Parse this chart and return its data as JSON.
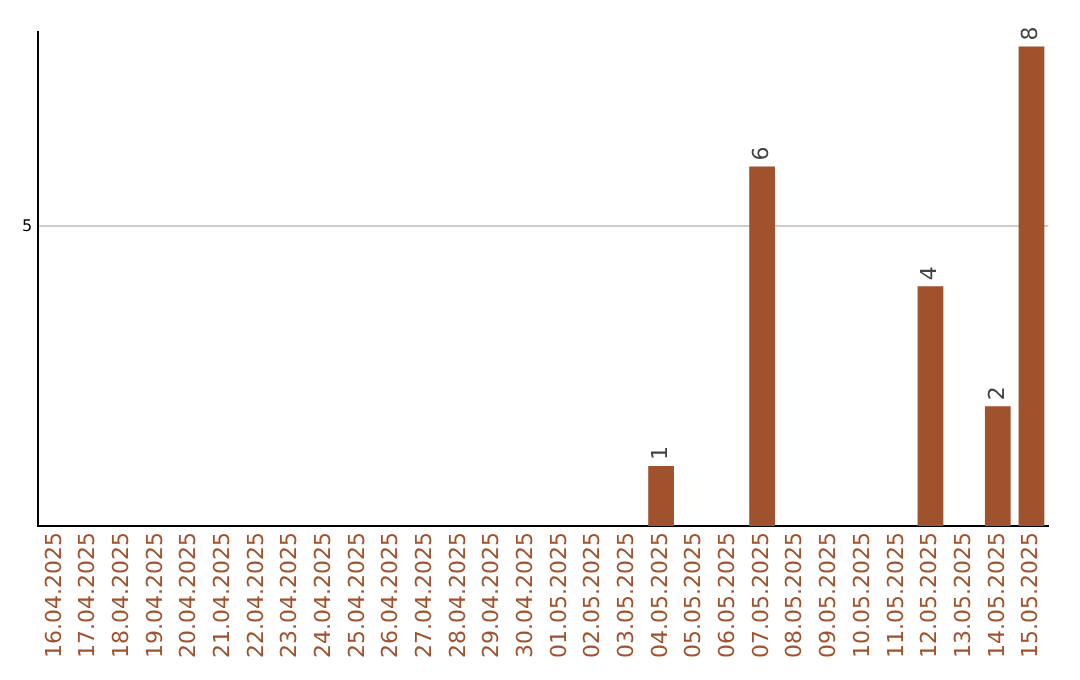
{
  "chart_data": {
    "type": "bar",
    "categories": [
      "16.04.2025",
      "17.04.2025",
      "18.04.2025",
      "19.04.2025",
      "20.04.2025",
      "21.04.2025",
      "22.04.2025",
      "23.04.2025",
      "24.04.2025",
      "25.04.2025",
      "26.04.2025",
      "27.04.2025",
      "28.04.2025",
      "29.04.2025",
      "30.04.2025",
      "01.05.2025",
      "02.05.2025",
      "03.05.2025",
      "04.05.2025",
      "05.05.2025",
      "06.05.2025",
      "07.05.2025",
      "08.05.2025",
      "09.05.2025",
      "10.05.2025",
      "11.05.2025",
      "12.05.2025",
      "13.05.2025",
      "14.05.2025",
      "15.05.2025"
    ],
    "values": [
      null,
      null,
      null,
      null,
      null,
      null,
      null,
      null,
      null,
      null,
      null,
      null,
      null,
      null,
      null,
      null,
      null,
      null,
      1,
      null,
      null,
      6,
      null,
      null,
      null,
      null,
      4,
      null,
      2,
      8
    ],
    "color": "#a0522d",
    "ylim": [
      0,
      8.25
    ],
    "yticks": [
      5
    ],
    "grid": "y",
    "data_labels": true,
    "legend": false
  }
}
